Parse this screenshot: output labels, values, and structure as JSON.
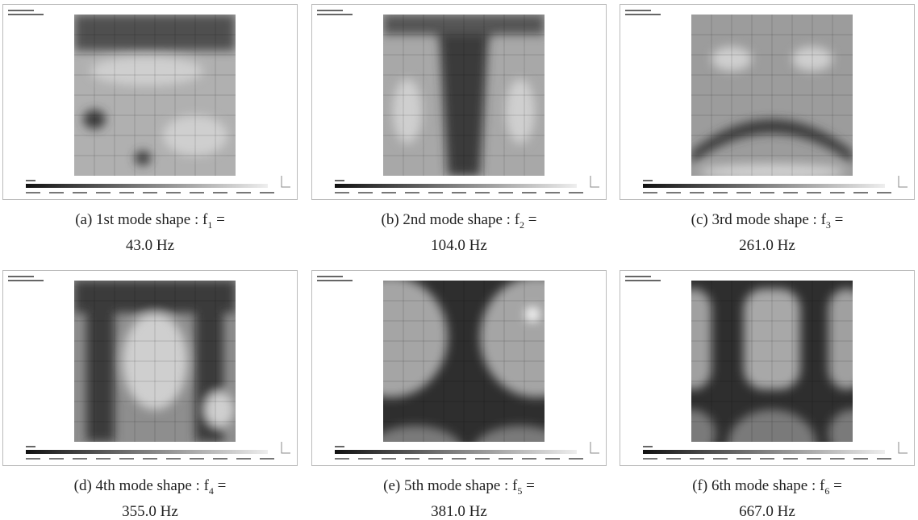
{
  "figure": {
    "panels": [
      {
        "label": "(a)",
        "caption": "1st mode shape :",
        "symbol": "f",
        "subscript": "1",
        "equals": "=",
        "frequency": "43.0 Hz"
      },
      {
        "label": "(b)",
        "caption": "2nd mode shape :",
        "symbol": "f",
        "subscript": "2",
        "equals": "=",
        "frequency": "104.0 Hz"
      },
      {
        "label": "(c)",
        "caption": "3rd mode shape :",
        "symbol": "f",
        "subscript": "3",
        "equals": "=",
        "frequency": "261.0 Hz"
      },
      {
        "label": "(d)",
        "caption": "4th mode shape :",
        "symbol": "f",
        "subscript": "4",
        "equals": "=",
        "frequency": "355.0 Hz"
      },
      {
        "label": "(e)",
        "caption": "5th mode shape :",
        "symbol": "f",
        "subscript": "5",
        "equals": "=",
        "frequency": "381.0 Hz"
      },
      {
        "label": "(f)",
        "caption": "6th mode shape :",
        "symbol": "f",
        "subscript": "6",
        "equals": "=",
        "frequency": "667.0 Hz"
      }
    ]
  }
}
